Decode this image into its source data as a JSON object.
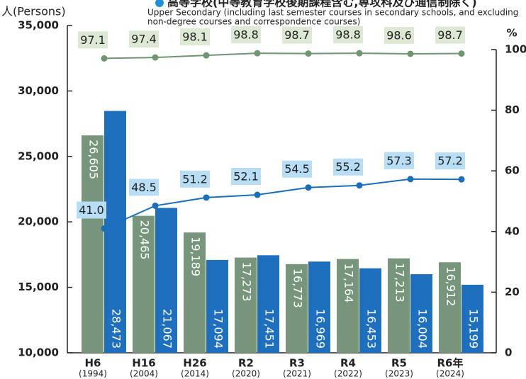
{
  "chart_data": {
    "type": "bar",
    "title": "高等学校(中等教育学校後期課程含む,専攻科及び通信制除く)",
    "subtitle": [
      "Upper Secondary (including last semester courses in secondary schools, and excluding",
      "non-degree courses and correspondence courses)"
    ],
    "y_label": "人(Persons)",
    "y2_label": "%",
    "categories": [
      "H6",
      "H16",
      "H26",
      "R2",
      "R3",
      "R4",
      "R5",
      "R6年"
    ],
    "category_years": [
      "(1994)",
      "(2004)",
      "(2014)",
      "(2020)",
      "(2021)",
      "(2022)",
      "(2023)",
      "(2024)"
    ],
    "series": [
      {
        "type": "bar",
        "color": "#76957a",
        "values": [
          26605,
          20465,
          19189,
          17273,
          16773,
          17164,
          17213,
          16912
        ],
        "value_labels": [
          "26,605",
          "20,465",
          "19,189",
          "17,273",
          "16,773",
          "17,164",
          "17,213",
          "16,912"
        ]
      },
      {
        "type": "bar",
        "color": "#1f6fbf",
        "values": [
          28473,
          21067,
          17094,
          17451,
          16969,
          16453,
          16004,
          15199
        ],
        "value_labels": [
          "28,473",
          "21,067",
          "17,094",
          "17,451",
          "16,969",
          "16,453",
          "16,004",
          "15,199"
        ]
      },
      {
        "type": "line",
        "axis": "y2",
        "color": "#6f9670",
        "label_bg": "#dde8d5",
        "values": [
          97.1,
          97.4,
          98.1,
          98.8,
          98.7,
          98.8,
          98.6,
          98.7
        ]
      },
      {
        "type": "line",
        "axis": "y2",
        "color": "#1a6fbd",
        "label_bg": "#b8def6",
        "values": [
          41.0,
          48.5,
          51.2,
          52.1,
          54.5,
          55.2,
          57.3,
          57.2
        ],
        "value_labels": [
          "41.0",
          "48.5",
          "51.2",
          "52.1",
          "54.5",
          "55.2",
          "57.3",
          "57.2"
        ]
      }
    ],
    "ylim": [
      10000,
      35000
    ],
    "yticks": [
      {
        "value": 10000,
        "label": "10,000"
      },
      {
        "value": 15000,
        "label": "15,000"
      },
      {
        "value": 20000,
        "label": "20,000"
      },
      {
        "value": 25000,
        "label": "25,000"
      },
      {
        "value": 30000,
        "label": "30,000"
      },
      {
        "value": 35000,
        "label": "35,000"
      }
    ],
    "y2lim": [
      0,
      100
    ],
    "y2ticks": [
      0,
      20,
      40,
      60,
      80,
      100
    ]
  }
}
